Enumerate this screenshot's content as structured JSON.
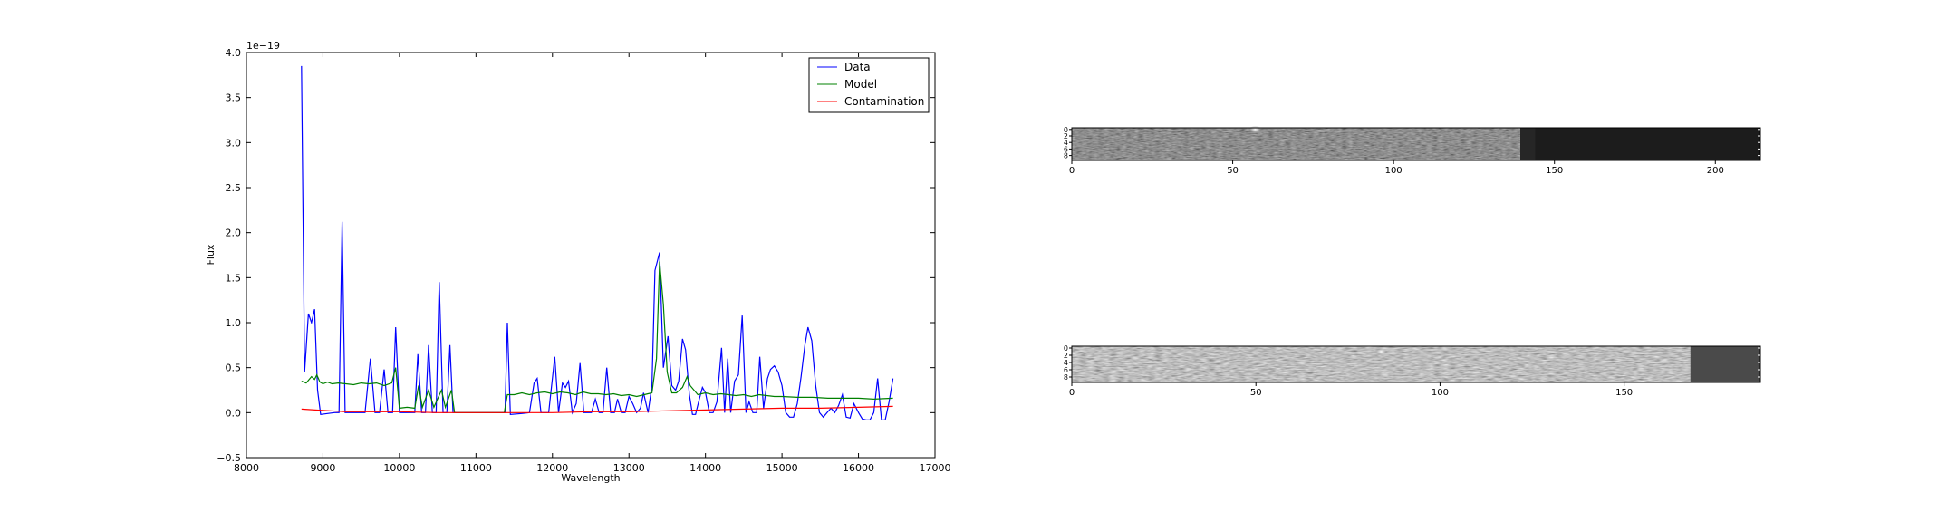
{
  "chart_data": [
    {
      "type": "line",
      "title": "",
      "xlabel": "Wavelength",
      "ylabel": "Flux",
      "offset_text": "1e−19",
      "xlim": [
        8000,
        17000
      ],
      "ylim": [
        -0.5,
        4.0
      ],
      "xticks": [
        8000,
        9000,
        10000,
        11000,
        12000,
        13000,
        14000,
        15000,
        16000,
        17000
      ],
      "xtick_labels": [
        "8000",
        "9000",
        "10000",
        "11000",
        "12000",
        "13000",
        "14000",
        "15000",
        "16000",
        "17000"
      ],
      "yticks": [
        -0.5,
        0.0,
        0.5,
        1.0,
        1.5,
        2.0,
        2.5,
        3.0,
        3.5,
        4.0
      ],
      "ytick_labels": [
        "−0.5",
        "0.0",
        "0.5",
        "1.0",
        "1.5",
        "2.0",
        "2.5",
        "3.0",
        "3.5",
        "4.0"
      ],
      "legend_position": "top-right",
      "grid": false,
      "series": [
        {
          "name": "Data",
          "color": "#0000ff",
          "points": [
            [
              8720,
              3.85
            ],
            [
              8760,
              0.45
            ],
            [
              8810,
              1.1
            ],
            [
              8850,
              1.0
            ],
            [
              8890,
              1.15
            ],
            [
              8930,
              0.25
            ],
            [
              8970,
              -0.02
            ],
            [
              9060,
              -0.01
            ],
            [
              9150,
              0.0
            ],
            [
              9210,
              0.0
            ],
            [
              9250,
              2.12
            ],
            [
              9290,
              0.0
            ],
            [
              9350,
              0.0
            ],
            [
              9450,
              0.0
            ],
            [
              9550,
              0.0
            ],
            [
              9620,
              0.6
            ],
            [
              9680,
              0.0
            ],
            [
              9740,
              0.0
            ],
            [
              9800,
              0.48
            ],
            [
              9850,
              0.0
            ],
            [
              9910,
              0.0
            ],
            [
              9950,
              0.95
            ],
            [
              10000,
              0.0
            ],
            [
              10050,
              0.0
            ],
            [
              10100,
              0.0
            ],
            [
              10150,
              0.0
            ],
            [
              10200,
              0.0
            ],
            [
              10240,
              0.65
            ],
            [
              10290,
              0.0
            ],
            [
              10340,
              0.0
            ],
            [
              10380,
              0.75
            ],
            [
              10430,
              0.0
            ],
            [
              10480,
              0.0
            ],
            [
              10520,
              1.45
            ],
            [
              10570,
              0.0
            ],
            [
              10620,
              0.0
            ],
            [
              10660,
              0.75
            ],
            [
              10700,
              0.0
            ],
            [
              10900,
              0.0
            ],
            [
              11100,
              0.0
            ],
            [
              11380,
              0.0
            ],
            [
              11410,
              1.0
            ],
            [
              11450,
              -0.02
            ],
            [
              11600,
              -0.01
            ],
            [
              11700,
              0.0
            ],
            [
              11760,
              0.33
            ],
            [
              11800,
              0.38
            ],
            [
              11850,
              0.0
            ],
            [
              11950,
              0.0
            ],
            [
              12030,
              0.62
            ],
            [
              12080,
              0.0
            ],
            [
              12130,
              0.33
            ],
            [
              12170,
              0.28
            ],
            [
              12210,
              0.35
            ],
            [
              12260,
              0.0
            ],
            [
              12310,
              0.1
            ],
            [
              12360,
              0.55
            ],
            [
              12410,
              0.0
            ],
            [
              12460,
              0.0
            ],
            [
              12510,
              0.0
            ],
            [
              12560,
              0.15
            ],
            [
              12610,
              0.0
            ],
            [
              12660,
              0.0
            ],
            [
              12710,
              0.5
            ],
            [
              12760,
              0.0
            ],
            [
              12810,
              0.0
            ],
            [
              12850,
              0.15
            ],
            [
              12900,
              0.0
            ],
            [
              12950,
              0.0
            ],
            [
              13000,
              0.18
            ],
            [
              13050,
              0.1
            ],
            [
              13100,
              0.0
            ],
            [
              13150,
              0.05
            ],
            [
              13190,
              0.22
            ],
            [
              13250,
              0.0
            ],
            [
              13300,
              0.3
            ],
            [
              13340,
              1.58
            ],
            [
              13400,
              1.78
            ],
            [
              13450,
              0.5
            ],
            [
              13510,
              0.85
            ],
            [
              13560,
              0.3
            ],
            [
              13610,
              0.25
            ],
            [
              13650,
              0.35
            ],
            [
              13700,
              0.82
            ],
            [
              13740,
              0.7
            ],
            [
              13790,
              0.2
            ],
            [
              13830,
              -0.02
            ],
            [
              13870,
              -0.02
            ],
            [
              13910,
              0.12
            ],
            [
              13960,
              0.28
            ],
            [
              14000,
              0.22
            ],
            [
              14050,
              0.0
            ],
            [
              14100,
              0.0
            ],
            [
              14150,
              0.12
            ],
            [
              14210,
              0.72
            ],
            [
              14250,
              0.0
            ],
            [
              14290,
              0.6
            ],
            [
              14330,
              0.0
            ],
            [
              14380,
              0.35
            ],
            [
              14430,
              0.42
            ],
            [
              14480,
              1.08
            ],
            [
              14530,
              0.0
            ],
            [
              14570,
              0.12
            ],
            [
              14620,
              0.0
            ],
            [
              14670,
              0.0
            ],
            [
              14710,
              0.62
            ],
            [
              14760,
              0.05
            ],
            [
              14810,
              0.38
            ],
            [
              14850,
              0.48
            ],
            [
              14900,
              0.52
            ],
            [
              14950,
              0.45
            ],
            [
              15000,
              0.3
            ],
            [
              15050,
              0.0
            ],
            [
              15100,
              -0.05
            ],
            [
              15150,
              -0.05
            ],
            [
              15200,
              0.1
            ],
            [
              15250,
              0.4
            ],
            [
              15300,
              0.75
            ],
            [
              15340,
              0.95
            ],
            [
              15390,
              0.8
            ],
            [
              15440,
              0.3
            ],
            [
              15490,
              0.0
            ],
            [
              15540,
              -0.05
            ],
            [
              15590,
              0.0
            ],
            [
              15640,
              0.05
            ],
            [
              15690,
              0.0
            ],
            [
              15740,
              0.08
            ],
            [
              15790,
              0.2
            ],
            [
              15840,
              -0.05
            ],
            [
              15890,
              -0.06
            ],
            [
              15940,
              0.1
            ],
            [
              16000,
              0.0
            ],
            [
              16050,
              -0.07
            ],
            [
              16100,
              -0.08
            ],
            [
              16150,
              -0.08
            ],
            [
              16200,
              0.0
            ],
            [
              16250,
              0.38
            ],
            [
              16300,
              -0.08
            ],
            [
              16350,
              -0.08
            ],
            [
              16400,
              0.12
            ],
            [
              16450,
              0.38
            ]
          ]
        },
        {
          "name": "Model",
          "color": "#008000",
          "points": [
            [
              8720,
              0.35
            ],
            [
              8780,
              0.33
            ],
            [
              8850,
              0.4
            ],
            [
              8890,
              0.37
            ],
            [
              8920,
              0.42
            ],
            [
              8960,
              0.34
            ],
            [
              9000,
              0.32
            ],
            [
              9060,
              0.34
            ],
            [
              9120,
              0.32
            ],
            [
              9200,
              0.33
            ],
            [
              9300,
              0.32
            ],
            [
              9400,
              0.31
            ],
            [
              9500,
              0.33
            ],
            [
              9600,
              0.32
            ],
            [
              9700,
              0.33
            ],
            [
              9800,
              0.3
            ],
            [
              9900,
              0.33
            ],
            [
              9950,
              0.5
            ],
            [
              10000,
              0.05
            ],
            [
              10100,
              0.06
            ],
            [
              10200,
              0.05
            ],
            [
              10250,
              0.3
            ],
            [
              10300,
              0.06
            ],
            [
              10380,
              0.25
            ],
            [
              10450,
              0.06
            ],
            [
              10550,
              0.25
            ],
            [
              10600,
              0.06
            ],
            [
              10680,
              0.25
            ],
            [
              10720,
              0.0
            ],
            [
              10900,
              0.0
            ],
            [
              11100,
              0.0
            ],
            [
              11370,
              0.0
            ],
            [
              11410,
              0.2
            ],
            [
              11500,
              0.2
            ],
            [
              11600,
              0.22
            ],
            [
              11700,
              0.2
            ],
            [
              11800,
              0.22
            ],
            [
              11900,
              0.23
            ],
            [
              12000,
              0.21
            ],
            [
              12100,
              0.23
            ],
            [
              12200,
              0.22
            ],
            [
              12300,
              0.2
            ],
            [
              12400,
              0.23
            ],
            [
              12500,
              0.21
            ],
            [
              12600,
              0.21
            ],
            [
              12700,
              0.2
            ],
            [
              12800,
              0.21
            ],
            [
              12900,
              0.19
            ],
            [
              13000,
              0.2
            ],
            [
              13100,
              0.18
            ],
            [
              13200,
              0.2
            ],
            [
              13300,
              0.22
            ],
            [
              13360,
              0.6
            ],
            [
              13400,
              1.68
            ],
            [
              13450,
              1.2
            ],
            [
              13500,
              0.45
            ],
            [
              13560,
              0.22
            ],
            [
              13620,
              0.22
            ],
            [
              13700,
              0.28
            ],
            [
              13760,
              0.4
            ],
            [
              13800,
              0.3
            ],
            [
              13900,
              0.2
            ],
            [
              14000,
              0.22
            ],
            [
              14100,
              0.2
            ],
            [
              14200,
              0.21
            ],
            [
              14300,
              0.2
            ],
            [
              14400,
              0.19
            ],
            [
              14500,
              0.2
            ],
            [
              14600,
              0.18
            ],
            [
              14700,
              0.2
            ],
            [
              14800,
              0.19
            ],
            [
              14900,
              0.18
            ],
            [
              15000,
              0.18
            ],
            [
              15200,
              0.17
            ],
            [
              15400,
              0.17
            ],
            [
              15600,
              0.16
            ],
            [
              15800,
              0.16
            ],
            [
              16000,
              0.16
            ],
            [
              16200,
              0.15
            ],
            [
              16450,
              0.16
            ]
          ]
        },
        {
          "name": "Contamination",
          "color": "#ff0000",
          "points": [
            [
              8720,
              0.04
            ],
            [
              8900,
              0.03
            ],
            [
              9100,
              0.02
            ],
            [
              9300,
              0.01
            ],
            [
              9600,
              0.01
            ],
            [
              10000,
              0.01
            ],
            [
              10500,
              0.0
            ],
            [
              11000,
              0.0
            ],
            [
              11500,
              0.0
            ],
            [
              12000,
              0.0
            ],
            [
              12500,
              0.01
            ],
            [
              13000,
              0.01
            ],
            [
              13500,
              0.02
            ],
            [
              14000,
              0.03
            ],
            [
              14500,
              0.04
            ],
            [
              15000,
              0.05
            ],
            [
              15500,
              0.05
            ],
            [
              16000,
              0.06
            ],
            [
              16450,
              0.07
            ]
          ]
        }
      ]
    },
    {
      "type": "heatmap",
      "title": "",
      "colormap": "gray",
      "xlim": [
        0,
        214
      ],
      "ylim": [
        10,
        0
      ],
      "xticks": [
        0,
        50,
        100,
        150,
        200
      ],
      "xtick_labels": [
        "0",
        "50",
        "100",
        "150",
        "200"
      ],
      "yticks": [
        0,
        2,
        4,
        6,
        8
      ],
      "ytick_labels": [
        "0",
        "2",
        "4",
        "6",
        "8"
      ],
      "bright_spot": {
        "x": 57,
        "y": 0.5
      },
      "masked_from_x": 144
    },
    {
      "type": "heatmap",
      "title": "",
      "colormap": "gray",
      "xlim": [
        0,
        187
      ],
      "ylim": [
        10,
        0
      ],
      "xticks": [
        0,
        50,
        100,
        150
      ],
      "xtick_labels": [
        "0",
        "50",
        "100",
        "150"
      ],
      "yticks": [
        0,
        2,
        4,
        6,
        8
      ],
      "ytick_labels": [
        "0",
        "2",
        "4",
        "6",
        "8"
      ],
      "bright_spot": {
        "x": 84,
        "y": 1.5
      },
      "masked_from_x": 168
    }
  ]
}
